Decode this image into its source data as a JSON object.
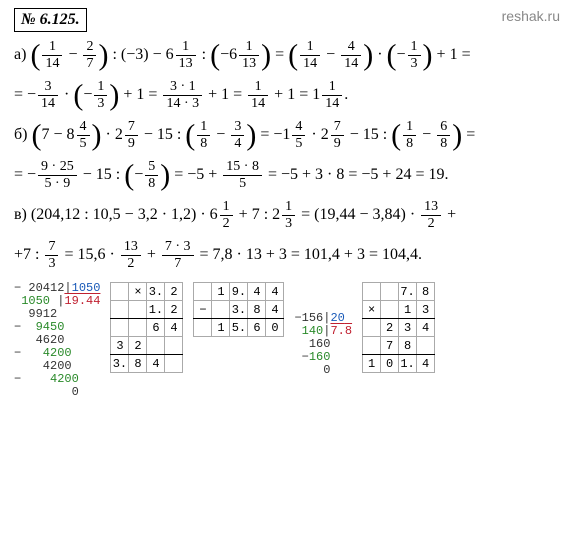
{
  "header": {
    "problem_number": "№ 6.125.",
    "site": "reshak.ru"
  },
  "a": {
    "label": "а)",
    "l1": {
      "f1n": "1",
      "f1d": "14",
      "f2n": "2",
      "f2d": "7",
      "p2": "(−3)",
      "m1w": "6",
      "m1n": "1",
      "m1d": "13",
      "m2w": "−6",
      "m2n": "1",
      "m2d": "13",
      "f3n": "1",
      "f3d": "14",
      "f4n": "4",
      "f4d": "14",
      "f5n": "1",
      "f5d": "3",
      "tail": "+ 1 ="
    },
    "l2": {
      "f1n": "3",
      "f1d": "14",
      "f2n": "1",
      "f2d": "3",
      "mid": "+ 1 =",
      "f3n": "3 · 1",
      "f3d": "14 · 3",
      "mid2": "+ 1 =",
      "f4n": "1",
      "f4d": "14",
      "eq": "+ 1 = 1",
      "f5n": "1",
      "f5d": "14",
      "dot": "."
    }
  },
  "b": {
    "label": "б)",
    "l1": {
      "p1": "7 − 8",
      "m1n": "4",
      "m1d": "5",
      "m2w": "· 2",
      "m2n": "7",
      "m2d": "9",
      "mid": "− 15 :",
      "f1n": "1",
      "f1d": "8",
      "f2n": "3",
      "f2d": "4",
      "eq": "= −1",
      "m3n": "4",
      "m3d": "5",
      "m4w": "· 2",
      "m4n": "7",
      "m4d": "9",
      "mid2": "− 15 :",
      "f3n": "1",
      "f3d": "8",
      "f4n": "6",
      "f4d": "8",
      "tail": "="
    },
    "l2": {
      "pre": "= −",
      "f1n": "9 · 25",
      "f1d": "5 · 9",
      "mid": "− 15 :",
      "f2n": "5",
      "f2d": "8",
      "eq": "= −5 +",
      "f3n": "15 · 8",
      "f3d": "5",
      "tail": "= −5 + 3 · 8 = −5 + 24 = 19."
    }
  },
  "c": {
    "label": "в)",
    "l1": {
      "p1": "(204,12 : 10,5 − 3,2 · 1,2) · 6",
      "m1n": "1",
      "m1d": "2",
      "mid": "+ 7 : 2",
      "m2n": "1",
      "m2d": "3",
      "eq": "= (19,44 − 3,84) ·",
      "f1n": "13",
      "f1d": "2",
      "tail": "+"
    },
    "l2": {
      "pre": "+7 :",
      "f1n": "7",
      "f1d": "3",
      "eq": "= 15,6 ·",
      "f2n": "13",
      "f2d": "2",
      "plus": "+",
      "f3n": "7 · 3",
      "f3d": "7",
      "tail": "= 7,8 · 13 + 3 = 101,4 + 3 = 104,4."
    }
  },
  "calc": {
    "longdiv": {
      "l1a": " 20412",
      "l1b": "1050",
      "l2a": " 1050 ",
      "l2b": "19.44",
      "l3": "  9912",
      "l4": "  9450",
      "l5": "   4620",
      "l6": "   4200",
      "l7": "    4200",
      "l8": "    4200",
      "l9": "        0"
    },
    "mult1": {
      "r1": [
        "",
        "×",
        "3.",
        "2"
      ],
      "r2": [
        "",
        "",
        "1.",
        "2"
      ],
      "r3": [
        "",
        "",
        "6",
        "4"
      ],
      "r4": [
        "3",
        "2",
        "",
        ""
      ],
      "r5": [
        "3.",
        "8",
        "4",
        ""
      ]
    },
    "sub1": {
      "r1": [
        "",
        "1",
        "9.",
        "4",
        "4"
      ],
      "r2": [
        "−",
        "",
        "3.",
        "8",
        "4"
      ],
      "r3": [
        "",
        "1",
        "5.",
        "6",
        "0"
      ]
    },
    "div2": {
      "r1": [
        " ",
        "1",
        "5",
        "6",
        "2",
        "0"
      ],
      "r2": [
        "−",
        "1",
        "4",
        "0",
        "7.",
        "8"
      ],
      "r3": [
        "",
        "",
        "1",
        "6",
        "0",
        "",
        ""
      ],
      "r4": [
        "",
        "−",
        "1",
        "6",
        "0",
        "",
        ""
      ],
      "r5": [
        "",
        "",
        "",
        "",
        "0",
        "",
        ""
      ]
    },
    "mult2": {
      "r1": [
        "",
        "",
        "7.",
        "8"
      ],
      "r2": [
        "×",
        "",
        "1",
        "3"
      ],
      "r3": [
        "",
        "2",
        "3",
        "4"
      ],
      "r4": [
        "",
        "7",
        "8",
        ""
      ],
      "r5": [
        "1",
        "0",
        "1.",
        "4"
      ]
    }
  }
}
